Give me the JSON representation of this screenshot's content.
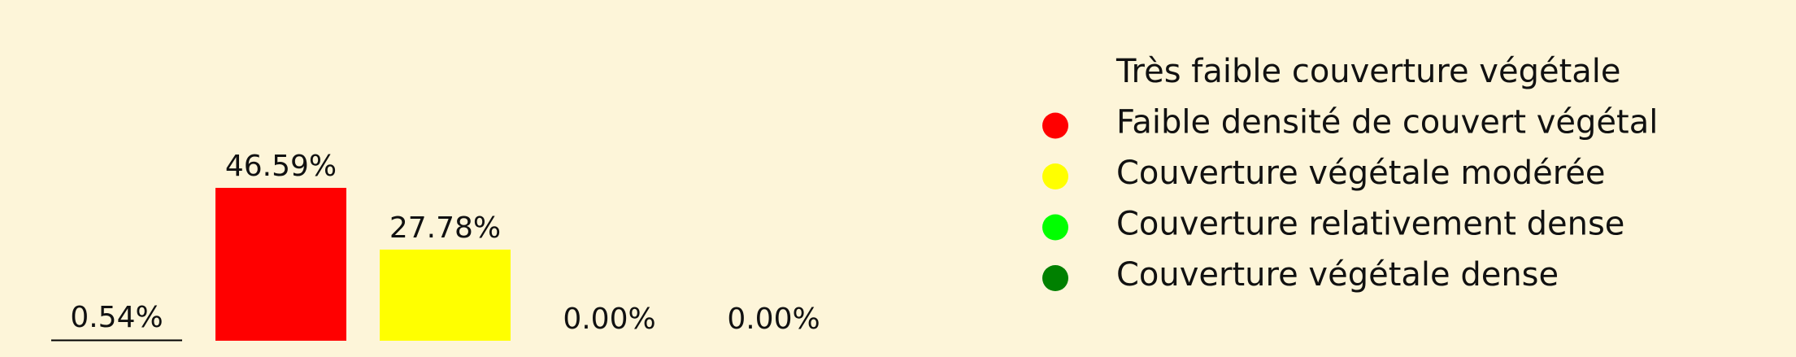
{
  "chart_data": {
    "type": "bar",
    "title": "",
    "xlabel": "",
    "ylabel": "",
    "ylim": [
      0,
      46.59
    ],
    "grid": false,
    "legend_position": "right",
    "categories": [
      "Très faible couverture végétale",
      "Faible densité de couvert végétal",
      "Couverture végétale modérée",
      "Couverture relativement dense",
      "Couverture végétale dense"
    ],
    "values": [
      0.54,
      46.59,
      27.78,
      0.0,
      0.0
    ],
    "data_labels": [
      "0.54%",
      "46.59%",
      "27.78%",
      "0.00%",
      "0.00%"
    ],
    "colors": [
      "#fdf5d9",
      "#ff0000",
      "#ffff00",
      "#00ff00",
      "#008000"
    ],
    "legend": [
      {
        "label": "Très faible couverture végétale",
        "color": "#fdf5d9"
      },
      {
        "label": "Faible densité de couvert végétal",
        "color": "#ff0000"
      },
      {
        "label": "Couverture végétale modérée",
        "color": "#ffff00"
      },
      {
        "label": "Couverture relativement dense",
        "color": "#00ff00"
      },
      {
        "label": "Couverture végétale dense",
        "color": "#008000"
      }
    ]
  },
  "colors": {
    "background": "#fdf5d9",
    "text": "#111111",
    "zero_bar_edge": "#000000"
  }
}
